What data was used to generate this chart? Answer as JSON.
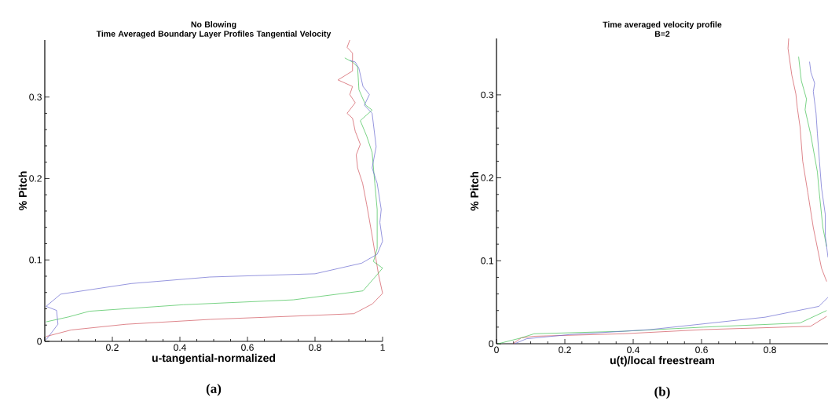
{
  "chart_data": [
    {
      "type": "line",
      "title": "No Blowing",
      "subtitle": "Time Averaged Boundary Layer Profiles Tangential Velocity",
      "xlabel": "u-tangential-normalized",
      "ylabel": "% Pitch",
      "annotations": [
        "(a)"
      ],
      "xlim": [
        0,
        1
      ],
      "ylim": [
        0,
        0.37
      ],
      "xticks": [
        {
          "value": 0,
          "label": null
        },
        0.2,
        0.4,
        0.6,
        0.8,
        1
      ],
      "yticks": [
        0,
        0.1,
        0.2,
        0.3
      ],
      "marker": "none",
      "line_style": "solid",
      "grid": false,
      "series": [
        {
          "color": "#d0505a",
          "x": [
            0.004,
            0.078,
            0.24,
            0.49,
            0.8,
            0.915,
            0.97,
            1.0,
            0.988,
            0.969,
            0.953,
            0.941,
            0.926,
            0.922,
            0.934,
            0.919,
            0.911,
            0.895,
            0.919,
            0.903,
            0.911,
            0.868,
            0.911,
            0.911,
            0.895,
            0.903
          ],
          "values": [
            0.006,
            0.014,
            0.021,
            0.027,
            0.032,
            0.034,
            0.046,
            0.059,
            0.082,
            0.13,
            0.168,
            0.194,
            0.213,
            0.229,
            0.242,
            0.258,
            0.274,
            0.28,
            0.293,
            0.303,
            0.313,
            0.321,
            0.332,
            0.354,
            0.361,
            0.37
          ]
        },
        {
          "color": "#40c050",
          "x": [
            0.004,
            0.07,
            0.132,
            0.41,
            0.736,
            0.942,
            0.984,
            1.0,
            0.973,
            0.984,
            0.984,
            0.977,
            0.969,
            0.953,
            0.934,
            0.969,
            0.95,
            0.93,
            0.926,
            0.911,
            0.888
          ],
          "values": [
            0.024,
            0.03,
            0.037,
            0.045,
            0.051,
            0.062,
            0.082,
            0.09,
            0.098,
            0.114,
            0.162,
            0.194,
            0.232,
            0.252,
            0.271,
            0.284,
            0.29,
            0.309,
            0.337,
            0.343,
            0.348
          ]
        },
        {
          "color": "#6868d0",
          "x": [
            0.004,
            0.039,
            0.035,
            0.004,
            0.047,
            0.256,
            0.488,
            0.8,
            0.938,
            0.984,
            1.0,
            0.992,
            0.996,
            0.984,
            0.969,
            0.981,
            0.969,
            0.946,
            0.961,
            0.942,
            0.93,
            0.919,
            0.903
          ],
          "values": [
            0.002,
            0.021,
            0.038,
            0.043,
            0.058,
            0.071,
            0.079,
            0.083,
            0.096,
            0.107,
            0.123,
            0.146,
            0.162,
            0.194,
            0.213,
            0.239,
            0.28,
            0.29,
            0.303,
            0.313,
            0.335,
            0.343,
            0.345
          ]
        }
      ]
    },
    {
      "type": "line",
      "title": "Time averaged velocity profile",
      "subtitle": "B=2",
      "xlabel": "u(t)/local freestream",
      "ylabel": "% Pitch",
      "annotations": [
        "(b)"
      ],
      "xlim": [
        0,
        0.97
      ],
      "ylim": [
        0,
        0.368
      ],
      "xticks": [
        0,
        0.2,
        0.4,
        0.6,
        0.8
      ],
      "yticks": [
        0,
        0.1,
        0.2,
        0.3
      ],
      "marker": "none",
      "line_style": "solid",
      "grid": false,
      "series": [
        {
          "color": "#d0505a",
          "x": [
            0.049,
            0.072,
            0.11,
            0.37,
            0.605,
            0.919,
            0.966,
            null,
            0.966,
            0.951,
            0.927,
            0.911,
            0.896,
            0.888,
            0.88,
            0.876,
            0.864,
            0.853,
            0.855
          ],
          "values": [
            0,
            0.007,
            0.009,
            0.012,
            0.017,
            0.021,
            0.033,
            null,
            0.075,
            0.091,
            0.14,
            0.182,
            0.22,
            0.262,
            0.285,
            0.301,
            0.324,
            0.356,
            0.368
          ]
        },
        {
          "color": "#40c050",
          "x": [
            0.005,
            0.072,
            0.11,
            0.37,
            0.605,
            0.888,
            0.966,
            null,
            0.966,
            0.955,
            0.943,
            0.939,
            0.919,
            0.903,
            0.907,
            0.892,
            0.884
          ],
          "values": [
            0,
            0.007,
            0.012,
            0.015,
            0.02,
            0.025,
            0.04,
            null,
            0.117,
            0.14,
            0.188,
            0.207,
            0.253,
            0.282,
            0.295,
            0.317,
            0.346
          ]
        },
        {
          "color": "#6868d0",
          "x": [
            0.053,
            0.088,
            0.213,
            0.449,
            0.786,
            0.943,
            0.97,
            null,
            0.97,
            0.962,
            0.962,
            0.951,
            0.945,
            0.939,
            0.935,
            0.927,
            0.931,
            0.92,
            0.916
          ],
          "values": [
            0,
            0.006,
            0.011,
            0.017,
            0.032,
            0.045,
            0.056,
            null,
            0.104,
            0.13,
            0.156,
            0.188,
            0.22,
            0.253,
            0.278,
            0.304,
            0.314,
            0.327,
            0.34
          ]
        }
      ]
    }
  ]
}
